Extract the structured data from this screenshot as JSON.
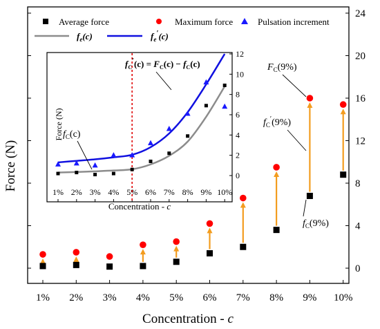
{
  "chart_data": [
    {
      "type": "scatter",
      "x": [
        "1%",
        "2%",
        "3%",
        "4%",
        "5%",
        "6%",
        "7%",
        "8%",
        "9%",
        "10%"
      ],
      "xlabel": "Concentration - c",
      "ylabel": "Force (N)",
      "ylim": [
        -1.5,
        24
      ],
      "y_ticks": [
        0,
        4,
        8,
        12,
        16,
        20,
        24
      ],
      "series": [
        {
          "name": "Average force",
          "marker": "square",
          "color": "#000000",
          "values": [
            0.2,
            0.3,
            0.15,
            0.2,
            0.6,
            1.4,
            2.0,
            3.6,
            6.8,
            8.8
          ]
        },
        {
          "name": "Maximum force",
          "marker": "circle",
          "color": "#ff0000",
          "values": [
            1.3,
            1.5,
            1.1,
            2.2,
            2.5,
            4.2,
            6.6,
            9.5,
            16.0,
            15.4
          ]
        }
      ],
      "arrow_color": "#f39c1f",
      "legend": "top",
      "annotations": [
        {
          "text": "F",
          "sub": "C",
          "rest": "(9%)"
        },
        {
          "text": "f",
          "sub": "C",
          "sup": "′",
          "rest": "(9%)"
        },
        {
          "text": "f",
          "sub": "C",
          "rest": "(9%)"
        }
      ]
    },
    {
      "type": "scatter",
      "x": [
        "1%",
        "2%",
        "3%",
        "4%",
        "5%",
        "6%",
        "7%",
        "8%",
        "9%",
        "10%"
      ],
      "xlabel": "Concentration - c",
      "ylabel": "Force (N)",
      "ylim": [
        -1,
        12
      ],
      "y_ticks": [
        0,
        2,
        4,
        6,
        8,
        10,
        12
      ],
      "vline_x": "5%",
      "series": [
        {
          "name": "Pulsation increment",
          "marker": "triangle",
          "color": "#1a1aff",
          "values": [
            1.1,
            1.2,
            1.0,
            2.0,
            2.0,
            3.2,
            4.6,
            6.1,
            9.2,
            6.8
          ]
        },
        {
          "name": "",
          "marker": "square-small",
          "color": "#000000",
          "values": [
            0.2,
            0.3,
            0.1,
            0.2,
            0.6,
            1.4,
            2.2,
            3.9,
            6.9,
            8.9
          ]
        },
        {
          "name": "f_c(c)",
          "kind": "fit",
          "color": "#8c8c8c",
          "values": [
            0.3,
            0.35,
            0.42,
            0.5,
            0.62,
            1.1,
            1.95,
            3.35,
            5.8,
            8.8
          ]
        },
        {
          "name": "f_c'(c)",
          "kind": "fit",
          "color": "#1010e0",
          "values": [
            1.3,
            1.45,
            1.6,
            1.8,
            2.05,
            2.8,
            4.15,
            6.25,
            9.0,
            12.0
          ]
        }
      ],
      "annotations": [
        {
          "text": "f",
          "sub": "C",
          "rest": "(c)"
        }
      ],
      "equation": {
        "lhs": "f",
        "lhs_sub": "C",
        "lhs_sup": "′",
        "lhs_rest": "(c) = ",
        "t1": "F",
        "t1_sub": "C",
        "t1_rest": "(c) − ",
        "t2": "f",
        "t2_sub": "C",
        "t2_rest": "(c)"
      }
    }
  ],
  "legend_labels": {
    "avg": "Average force",
    "max": "Maximum force",
    "pulse": "Pulsation increment",
    "fit1": "f",
    "fit1_sub": "e",
    "fit1_rest": "(c)",
    "fit2": "f",
    "fit2_sub": "e",
    "fit2_sup": "′",
    "fit2_rest": "(c)"
  }
}
